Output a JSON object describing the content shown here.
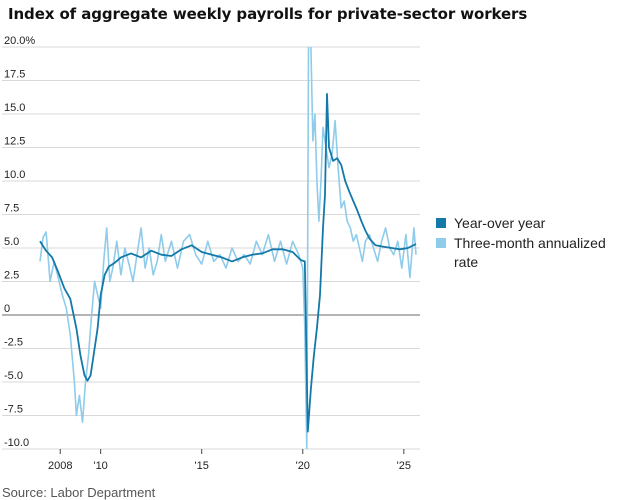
{
  "title": "Index of aggregate weekly payrolls for private-sector workers",
  "source": "Source: Labor Department",
  "chart_data": {
    "type": "line",
    "title": "Index of aggregate weekly payrolls for private-sector workers",
    "xlabel": "",
    "ylabel": "",
    "xlim": [
      2006.9,
      2025.8
    ],
    "ylim": [
      -10,
      20
    ],
    "y_ticks": [
      {
        "value": 20,
        "label": "20.0%"
      },
      {
        "value": 17.5,
        "label": "17.5"
      },
      {
        "value": 15,
        "label": "15.0"
      },
      {
        "value": 12.5,
        "label": "12.5"
      },
      {
        "value": 10,
        "label": "10.0"
      },
      {
        "value": 7.5,
        "label": "7.5"
      },
      {
        "value": 5,
        "label": "5.0"
      },
      {
        "value": 2.5,
        "label": "2.5"
      },
      {
        "value": 0,
        "label": "0"
      },
      {
        "value": -2.5,
        "label": "-2.5"
      },
      {
        "value": -5,
        "label": "-5.0"
      },
      {
        "value": -7.5,
        "label": "-7.5"
      },
      {
        "value": -10,
        "label": "-10.0"
      }
    ],
    "x_ticks": [
      {
        "value": 2008,
        "label": "2008"
      },
      {
        "value": 2010,
        "label": "'10"
      },
      {
        "value": 2015,
        "label": "'15"
      },
      {
        "value": 2020,
        "label": "'20"
      },
      {
        "value": 2025,
        "label": "'25"
      }
    ],
    "grid": "horizontal",
    "legend_position": "right",
    "series": [
      {
        "name": "Year-over year",
        "color": "#1478a8",
        "x": [
          2007.0,
          2007.3,
          2007.6,
          2007.9,
          2008.2,
          2008.5,
          2008.8,
          2009.0,
          2009.2,
          2009.35,
          2009.5,
          2009.7,
          2009.85,
          2010.0,
          2010.2,
          2010.4,
          2010.7,
          2011.0,
          2011.5,
          2012.0,
          2012.5,
          2013.0,
          2013.5,
          2014.0,
          2014.5,
          2015.0,
          2015.5,
          2016.0,
          2016.5,
          2017.0,
          2017.5,
          2018.0,
          2018.5,
          2019.0,
          2019.5,
          2019.9,
          2020.1,
          2020.25,
          2020.4,
          2020.55,
          2020.7,
          2020.85,
          2021.0,
          2021.1,
          2021.2,
          2021.3,
          2021.5,
          2021.7,
          2021.9,
          2022.1,
          2022.3,
          2022.5,
          2022.7,
          2022.9,
          2023.1,
          2023.3,
          2023.6,
          2024.0,
          2024.4,
          2024.8,
          2025.2,
          2025.6
        ],
        "y": [
          5.5,
          4.8,
          4.3,
          3.2,
          2.0,
          1.2,
          -1.0,
          -3.0,
          -4.5,
          -4.9,
          -4.5,
          -2.5,
          -1.0,
          1.5,
          3.0,
          3.6,
          3.9,
          4.3,
          4.6,
          4.3,
          4.8,
          4.5,
          4.4,
          4.9,
          5.2,
          4.7,
          4.5,
          4.3,
          4.0,
          4.3,
          4.5,
          4.6,
          4.9,
          4.9,
          4.7,
          4.1,
          4.0,
          -8.7,
          -5.5,
          -3.0,
          -1.0,
          1.5,
          6.5,
          9.0,
          16.5,
          12.5,
          11.5,
          11.7,
          11.2,
          10.0,
          9.2,
          8.5,
          7.8,
          7.0,
          6.3,
          5.7,
          5.2,
          5.1,
          5.0,
          4.9,
          5.0,
          5.3
        ]
      },
      {
        "name": "Three-month annualized rate",
        "color": "#8fcbea",
        "x": [
          2007.0,
          2007.15,
          2007.3,
          2007.5,
          2007.7,
          2007.9,
          2008.1,
          2008.3,
          2008.5,
          2008.7,
          2008.8,
          2008.95,
          2009.1,
          2009.25,
          2009.4,
          2009.55,
          2009.7,
          2009.85,
          2010.0,
          2010.15,
          2010.3,
          2010.45,
          2010.6,
          2010.8,
          2011.0,
          2011.2,
          2011.4,
          2011.6,
          2011.8,
          2012.0,
          2012.2,
          2012.4,
          2012.6,
          2012.8,
          2013.0,
          2013.2,
          2013.5,
          2013.8,
          2014.1,
          2014.4,
          2014.7,
          2015.0,
          2015.3,
          2015.6,
          2015.9,
          2016.2,
          2016.5,
          2016.8,
          2017.1,
          2017.4,
          2017.7,
          2018.0,
          2018.3,
          2018.6,
          2018.9,
          2019.2,
          2019.5,
          2019.8,
          2020.0,
          2020.1,
          2020.2,
          2020.3,
          2020.4,
          2020.5,
          2020.6,
          2020.7,
          2020.8,
          2020.9,
          2021.0,
          2021.15,
          2021.3,
          2021.45,
          2021.6,
          2021.75,
          2021.9,
          2022.05,
          2022.2,
          2022.35,
          2022.5,
          2022.65,
          2022.8,
          2022.95,
          2023.1,
          2023.3,
          2023.5,
          2023.7,
          2023.9,
          2024.1,
          2024.3,
          2024.5,
          2024.7,
          2024.9,
          2025.1,
          2025.3,
          2025.5,
          2025.6
        ],
        "y": [
          4.0,
          5.8,
          6.2,
          2.5,
          4.0,
          2.8,
          1.5,
          0.5,
          -1.5,
          -5.0,
          -7.5,
          -6.0,
          -8.0,
          -5.0,
          -3.0,
          0.0,
          2.5,
          1.5,
          0.5,
          4.0,
          6.5,
          2.5,
          3.5,
          5.5,
          3.0,
          5.0,
          3.8,
          2.5,
          4.5,
          6.5,
          3.5,
          5.0,
          3.0,
          4.0,
          6.0,
          4.0,
          5.5,
          3.5,
          5.5,
          6.0,
          4.5,
          3.8,
          5.5,
          4.0,
          4.5,
          3.5,
          5.0,
          4.0,
          4.5,
          3.8,
          5.5,
          4.5,
          6.0,
          4.0,
          5.5,
          3.8,
          5.5,
          4.5,
          3.5,
          -1.0,
          -10.0,
          25.0,
          20.0,
          13.0,
          15.0,
          10.0,
          7.0,
          10.0,
          14.0,
          12.5,
          11.0,
          12.0,
          14.5,
          11.0,
          8.0,
          8.5,
          7.0,
          6.5,
          5.5,
          6.0,
          5.0,
          4.0,
          5.5,
          6.0,
          5.0,
          4.0,
          5.5,
          6.5,
          5.0,
          4.5,
          5.5,
          3.5,
          6.0,
          2.8,
          6.5,
          4.5
        ]
      }
    ]
  }
}
